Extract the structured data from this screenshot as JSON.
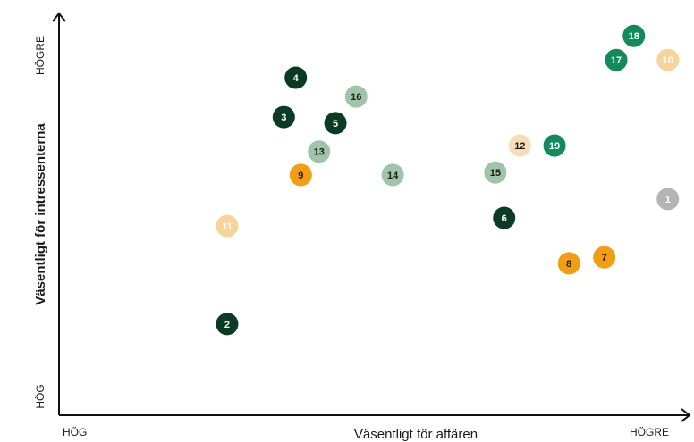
{
  "chart_data": {
    "type": "scatter",
    "xlabel": "Väsentligt för affären",
    "ylabel": "Väsentligt för intressenterna",
    "x_low": "HÖG",
    "x_high": "HÖGRE",
    "y_low": "HÖG",
    "y_high": "HÖGRE",
    "xlim": [
      0,
      100
    ],
    "ylim": [
      0,
      100
    ],
    "points": [
      {
        "label": "1",
        "x": 96.7,
        "y": 53.8,
        "color": "#b4b4b4",
        "text_color": "#ffffff"
      },
      {
        "label": "2",
        "x": 26.7,
        "y": 22.7,
        "color": "#0c3b25",
        "text_color": "#ffffff"
      },
      {
        "label": "3",
        "x": 35.7,
        "y": 74.2,
        "color": "#0c3b25",
        "text_color": "#ffffff"
      },
      {
        "label": "4",
        "x": 37.6,
        "y": 84.0,
        "color": "#0c3b25",
        "text_color": "#ffffff"
      },
      {
        "label": "5",
        "x": 43.9,
        "y": 72.7,
        "color": "#0c3b25",
        "text_color": "#ffffff"
      },
      {
        "label": "6",
        "x": 70.7,
        "y": 49.1,
        "color": "#0c3b25",
        "text_color": "#ffffff"
      },
      {
        "label": "7",
        "x": 86.6,
        "y": 39.3,
        "color": "#f29d12",
        "text_color": "#1a1a1a"
      },
      {
        "label": "8",
        "x": 81.0,
        "y": 37.8,
        "color": "#f29d12",
        "text_color": "#1a1a1a"
      },
      {
        "label": "9",
        "x": 38.4,
        "y": 59.8,
        "color": "#f29d12",
        "text_color": "#1a1a1a"
      },
      {
        "label": "10",
        "x": 96.7,
        "y": 88.4,
        "color": "#f8d49b",
        "text_color": "#ffffff"
      },
      {
        "label": "11",
        "x": 26.7,
        "y": 47.1,
        "color": "#f8d49b",
        "text_color": "#ffffff"
      },
      {
        "label": "12",
        "x": 73.2,
        "y": 67.1,
        "color": "#f9dcb8",
        "text_color": "#1a1a1a"
      },
      {
        "label": "13",
        "x": 41.3,
        "y": 65.6,
        "color": "#9fc4a9",
        "text_color": "#1a1a1a"
      },
      {
        "label": "14",
        "x": 53.0,
        "y": 59.8,
        "color": "#9fc4a9",
        "text_color": "#1a1a1a"
      },
      {
        "label": "15",
        "x": 69.3,
        "y": 60.4,
        "color": "#9fc4a9",
        "text_color": "#1a1a1a"
      },
      {
        "label": "16",
        "x": 47.2,
        "y": 79.3,
        "color": "#9fc4a9",
        "text_color": "#1a1a1a"
      },
      {
        "label": "17",
        "x": 88.5,
        "y": 88.4,
        "color": "#138a5b",
        "text_color": "#ffffff"
      },
      {
        "label": "18",
        "x": 91.3,
        "y": 94.4,
        "color": "#138a5b",
        "text_color": "#ffffff"
      },
      {
        "label": "19",
        "x": 78.7,
        "y": 67.1,
        "color": "#138a5b",
        "text_color": "#ffffff"
      }
    ]
  }
}
